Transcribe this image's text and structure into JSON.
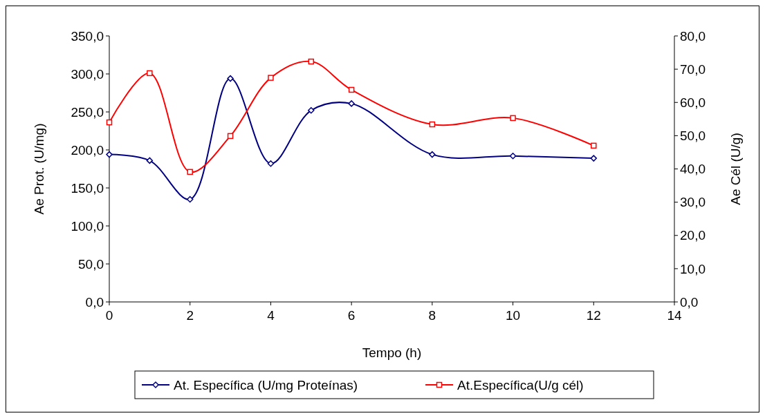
{
  "chart_data": {
    "type": "line",
    "xlabel": "Tempo (h)",
    "ylabel": "Ae Prot. (U/mg)",
    "y2label": "Ae Cél (U/g)",
    "xlim": [
      0,
      14
    ],
    "xticks": [
      0,
      2,
      4,
      6,
      8,
      10,
      12,
      14
    ],
    "ylim": [
      0,
      350
    ],
    "yticks": [
      {
        "value": 0,
        "label": "0,0"
      },
      {
        "value": 50,
        "label": "50,0"
      },
      {
        "value": 100,
        "label": "100,0"
      },
      {
        "value": 150,
        "label": "150,0"
      },
      {
        "value": 200,
        "label": "200,0"
      },
      {
        "value": 250,
        "label": "250,0"
      },
      {
        "value": 300,
        "label": "300,0"
      },
      {
        "value": 350,
        "label": "350,0"
      }
    ],
    "y2lim": [
      0,
      80
    ],
    "y2ticks": [
      {
        "value": 0,
        "label": "0,0"
      },
      {
        "value": 10,
        "label": "10,0"
      },
      {
        "value": 20,
        "label": "20,0"
      },
      {
        "value": 30,
        "label": "30,0"
      },
      {
        "value": 40,
        "label": "40,0"
      },
      {
        "value": 50,
        "label": "50,0"
      },
      {
        "value": 60,
        "label": "60,0"
      },
      {
        "value": 70,
        "label": "70,0"
      },
      {
        "value": 80,
        "label": "80,0"
      }
    ],
    "x": [
      0,
      1,
      2,
      3,
      4,
      5,
      6,
      8,
      10,
      12
    ],
    "series": [
      {
        "name": "At. Específica (U/mg Proteínas)",
        "color": "#000080",
        "marker": "diamond",
        "values": [
          194,
          186,
          135,
          294,
          182,
          252,
          261,
          194,
          192,
          189
        ]
      },
      {
        "name": "At.Específica(U/g cél)",
        "color": "#ff0000",
        "marker": "square",
        "axis": "y2",
        "values": [
          54.0,
          68.8,
          39.1,
          49.9,
          67.4,
          72.3,
          63.8,
          53.4,
          55.3,
          47.0
        ]
      }
    ],
    "legend": "bottom",
    "grid": false
  }
}
